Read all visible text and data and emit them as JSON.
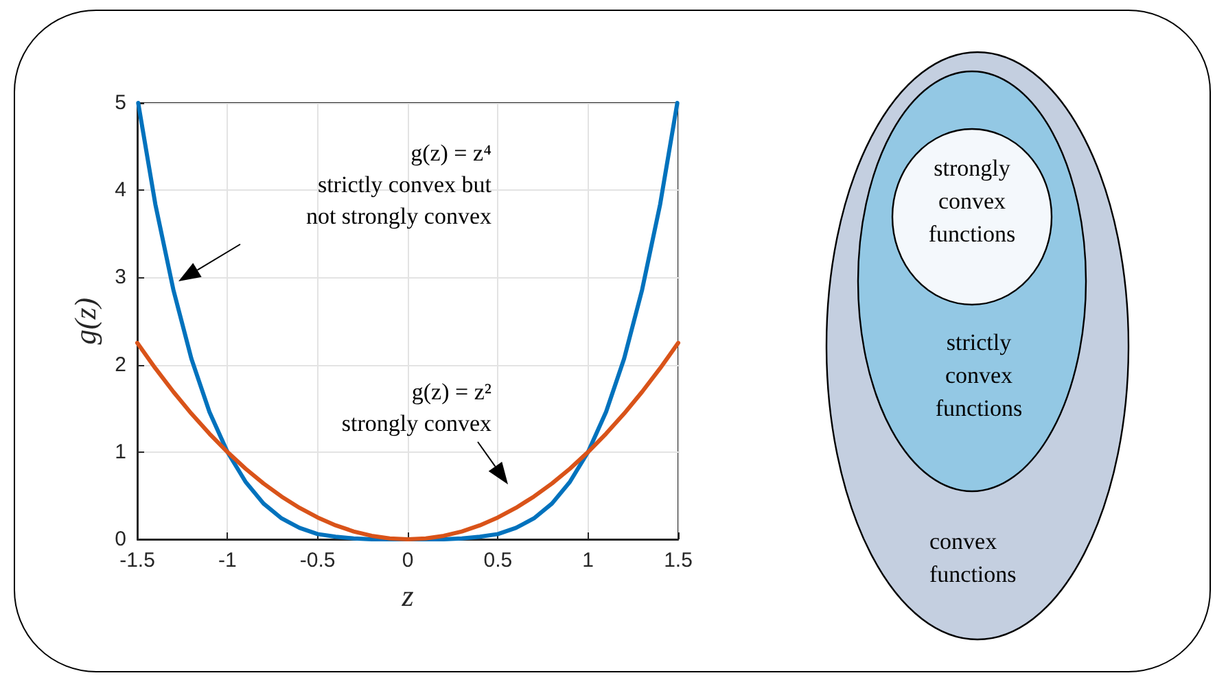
{
  "chart_data": [
    {
      "type": "line",
      "xlabel": "z",
      "ylabel": "g(z)",
      "xlim": [
        -1.5,
        1.5
      ],
      "ylim": [
        0,
        5
      ],
      "xticks": [
        -1.5,
        -1,
        -0.5,
        0,
        0.5,
        1,
        1.5
      ],
      "yticks": [
        0,
        1,
        2,
        3,
        4,
        5
      ],
      "grid": true,
      "marker": "none",
      "line_style": "solid",
      "series": [
        {
          "color": "#0072bd",
          "x": [
            -1.495,
            -1.4,
            -1.3,
            -1.2,
            -1.1,
            -1,
            -0.9,
            -0.8,
            -0.7,
            -0.6,
            -0.5,
            -0.4,
            -0.3,
            -0.2,
            -0.1,
            0,
            0.1,
            0.2,
            0.3,
            0.4,
            0.5,
            0.6,
            0.7,
            0.8,
            0.9,
            1,
            1.1,
            1.2,
            1.3,
            1.4,
            1.495
          ],
          "values": [
            5.0,
            3.84,
            2.86,
            2.07,
            1.46,
            1,
            0.66,
            0.41,
            0.24,
            0.13,
            0.06,
            0.03,
            0.01,
            0,
            0,
            0,
            0,
            0,
            0.01,
            0.03,
            0.06,
            0.13,
            0.24,
            0.41,
            0.66,
            1,
            1.46,
            2.07,
            2.86,
            3.84,
            5.0
          ]
        },
        {
          "color": "#d95319",
          "x": [
            -1.5,
            -1.4,
            -1.3,
            -1.2,
            -1.1,
            -1,
            -0.9,
            -0.8,
            -0.7,
            -0.6,
            -0.5,
            -0.4,
            -0.3,
            -0.2,
            -0.1,
            0,
            0.1,
            0.2,
            0.3,
            0.4,
            0.5,
            0.6,
            0.7,
            0.8,
            0.9,
            1,
            1.1,
            1.2,
            1.3,
            1.4,
            1.5
          ],
          "values": [
            2.25,
            1.96,
            1.69,
            1.44,
            1.21,
            1,
            0.81,
            0.64,
            0.49,
            0.36,
            0.25,
            0.16,
            0.09,
            0.04,
            0.01,
            0,
            0.01,
            0.04,
            0.09,
            0.16,
            0.25,
            0.36,
            0.49,
            0.64,
            0.81,
            1,
            1.21,
            1.44,
            1.69,
            1.96,
            2.25
          ]
        }
      ],
      "annotations": [
        "g(z) = z⁴\nstrictly convex but\nnot strongly convex",
        "g(z) = z²\nstrongly convex"
      ]
    },
    {
      "type": "other",
      "annotations": [
        "strongly\nconvex\nfunctions",
        "strictly\nconvex\nfunctions",
        "convex\nfunctions"
      ]
    }
  ]
}
